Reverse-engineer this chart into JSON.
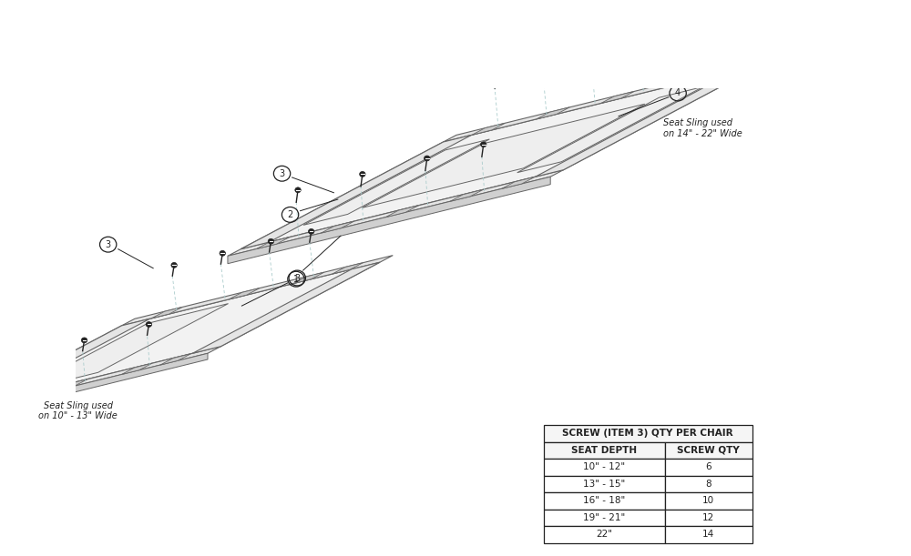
{
  "bg_color": "#ffffff",
  "line_color": "#666666",
  "dark_color": "#222222",
  "light_gray": "#bbbbbb",
  "face_color": "#f2f2f2",
  "rail_color": "#e5e5e5",
  "table_title": "SCREW (ITEM 3) QTY PER CHAIR",
  "table_col1_header": "SEAT DEPTH",
  "table_col2_header": "SCREW QTY",
  "table_rows": [
    [
      "10\" - 12\"",
      "6"
    ],
    [
      "13\" - 15\"",
      "8"
    ],
    [
      "16\" - 18\"",
      "10"
    ],
    [
      "19\" - 21\"",
      "12"
    ],
    [
      "22\"",
      "14"
    ]
  ],
  "label_left_sling": "Seat Sling used\non 10\" - 13\" Wide",
  "label_right_sling": "Seat Sling used\non 14\" - 22\" Wide"
}
